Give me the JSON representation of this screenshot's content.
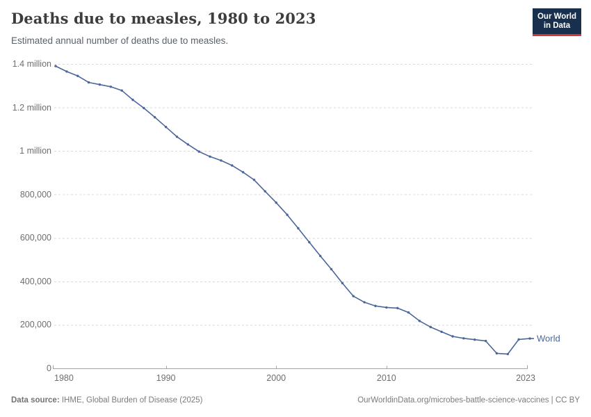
{
  "header": {
    "title": "Deaths due to measles, 1980 to 2023",
    "subtitle": "Estimated annual number of deaths due to measles.",
    "logo": {
      "line1": "Our World",
      "line2": "in Data"
    }
  },
  "chart_data": {
    "type": "line",
    "title": "Deaths due to measles, 1980 to 2023",
    "xlabel": "",
    "ylabel": "",
    "xlim": [
      1980,
      2023
    ],
    "ylim": [
      0,
      1400000
    ],
    "grid": "horizontal-dashed",
    "legend": "end-of-line-label",
    "x_ticks": [
      {
        "value": 1980,
        "label": "1980"
      },
      {
        "value": 1990,
        "label": "1990"
      },
      {
        "value": 2000,
        "label": "2000"
      },
      {
        "value": 2010,
        "label": "2010"
      },
      {
        "value": 2023,
        "label": "2023"
      }
    ],
    "y_ticks": [
      {
        "value": 0,
        "label": "0"
      },
      {
        "value": 200000,
        "label": "200,000"
      },
      {
        "value": 400000,
        "label": "400,000"
      },
      {
        "value": 600000,
        "label": "600,000"
      },
      {
        "value": 800000,
        "label": "800,000"
      },
      {
        "value": 1000000,
        "label": "1 million"
      },
      {
        "value": 1200000,
        "label": "1.2 million"
      },
      {
        "value": 1400000,
        "label": "1.4 million"
      }
    ],
    "x": [
      1980,
      1981,
      1982,
      1983,
      1984,
      1985,
      1986,
      1987,
      1988,
      1989,
      1990,
      1991,
      1992,
      1993,
      1994,
      1995,
      1996,
      1997,
      1998,
      1999,
      2000,
      2001,
      2002,
      2003,
      2004,
      2005,
      2006,
      2007,
      2008,
      2009,
      2010,
      2011,
      2012,
      2013,
      2014,
      2015,
      2016,
      2017,
      2018,
      2019,
      2020,
      2021,
      2022,
      2023
    ],
    "series": [
      {
        "name": "World",
        "color": "#4a669c",
        "values": [
          1390000,
          1365000,
          1345000,
          1315000,
          1305000,
          1295000,
          1278000,
          1235000,
          1197000,
          1155000,
          1110000,
          1065000,
          1030000,
          997000,
          974000,
          956000,
          933000,
          902000,
          867000,
          814000,
          762000,
          706000,
          644000,
          580000,
          517000,
          456000,
          392000,
          332000,
          304000,
          287000,
          280000,
          277000,
          257000,
          218000,
          190000,
          168000,
          147000,
          138000,
          132000,
          126000,
          69000,
          66000,
          133000,
          137000
        ]
      }
    ]
  },
  "footer": {
    "source_label": "Data source:",
    "source_text": " IHME, Global Burden of Disease (2025)",
    "credit": "OurWorldinData.org/microbes-battle-science-vaccines | CC BY"
  },
  "colors": {
    "line": "#4a669c",
    "grid": "#dadada",
    "axis": "#a3a3a3",
    "tick_label": "#6e6e6e",
    "title": "#3d3d3d",
    "logo_bg": "#18304e",
    "logo_red": "#d7382e"
  }
}
